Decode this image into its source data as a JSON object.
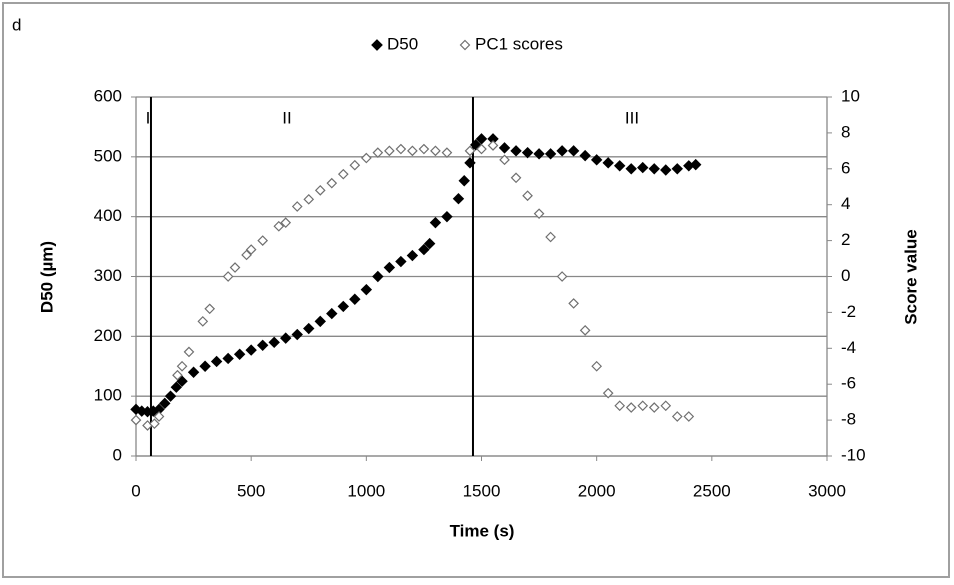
{
  "chart_data": {
    "type": "scatter",
    "panel_label": "d",
    "xlabel": "Time (s)",
    "ylabel": "D50 (µm)",
    "y2label": "Score value",
    "annotations": [
      "I",
      "II",
      "III"
    ],
    "vlines": [
      65,
      1463
    ],
    "xlim": [
      0,
      3000
    ],
    "xticks": [
      0,
      500,
      1000,
      1500,
      2000,
      2500,
      3000
    ],
    "ylim": [
      0,
      600
    ],
    "yticks": [
      0,
      100,
      200,
      300,
      400,
      500,
      600
    ],
    "y2lim": [
      -10,
      10
    ],
    "y2ticks": [
      -10,
      -8,
      -6,
      -4,
      -2,
      0,
      2,
      4,
      6,
      8,
      10
    ],
    "grid": true,
    "legend": "top",
    "series": [
      {
        "name": "D50",
        "color": "#000000",
        "filled": true,
        "x": [
          0,
          25,
          50,
          75,
          100,
          125,
          150,
          175,
          200,
          250,
          300,
          350,
          400,
          450,
          500,
          550,
          600,
          650,
          700,
          750,
          800,
          850,
          900,
          950,
          1000,
          1050,
          1100,
          1150,
          1200,
          1250,
          1275,
          1300,
          1350,
          1400,
          1425,
          1450,
          1475,
          1500,
          1550,
          1600,
          1650,
          1700,
          1750,
          1800,
          1850,
          1900,
          1950,
          2000,
          2050,
          2100,
          2150,
          2200,
          2250,
          2300,
          2350,
          2400,
          2430
        ],
        "values": [
          78,
          75,
          74,
          75,
          78,
          88,
          100,
          115,
          125,
          140,
          150,
          158,
          163,
          170,
          177,
          185,
          190,
          197,
          203,
          213,
          225,
          238,
          250,
          262,
          278,
          300,
          315,
          325,
          335,
          345,
          355,
          390,
          400,
          430,
          460,
          490,
          520,
          530,
          530,
          515,
          510,
          507,
          505,
          505,
          510,
          510,
          502,
          495,
          490,
          485,
          480,
          482,
          480,
          478,
          480,
          485,
          487
        ]
      },
      {
        "name": "PC1 scores",
        "color": "#707070",
        "filled": false,
        "axis": "y2",
        "x": [
          0,
          50,
          80,
          100,
          180,
          200,
          230,
          290,
          320,
          400,
          430,
          480,
          500,
          550,
          620,
          650,
          700,
          750,
          800,
          850,
          900,
          950,
          1000,
          1050,
          1100,
          1150,
          1200,
          1250,
          1300,
          1350,
          1450,
          1500,
          1550,
          1600,
          1650,
          1700,
          1750,
          1800,
          1850,
          1900,
          1950,
          2000,
          2050,
          2100,
          2150,
          2200,
          2250,
          2300,
          2350,
          2400
        ],
        "values": [
          -8.0,
          -8.3,
          -8.2,
          -7.8,
          -5.5,
          -5.0,
          -4.2,
          -2.5,
          -1.8,
          0,
          0.5,
          1.2,
          1.5,
          2.0,
          2.8,
          3.0,
          3.9,
          4.3,
          4.8,
          5.2,
          5.7,
          6.2,
          6.6,
          6.9,
          7.0,
          7.1,
          7.0,
          7.1,
          7.0,
          6.9,
          7.0,
          7.1,
          7.3,
          6.5,
          5.5,
          4.5,
          3.5,
          2.2,
          0,
          -1.5,
          -3.0,
          -5.0,
          -6.5,
          -7.2,
          -7.3,
          -7.2,
          -7.3,
          -7.2,
          -7.8,
          -7.8
        ]
      }
    ]
  }
}
